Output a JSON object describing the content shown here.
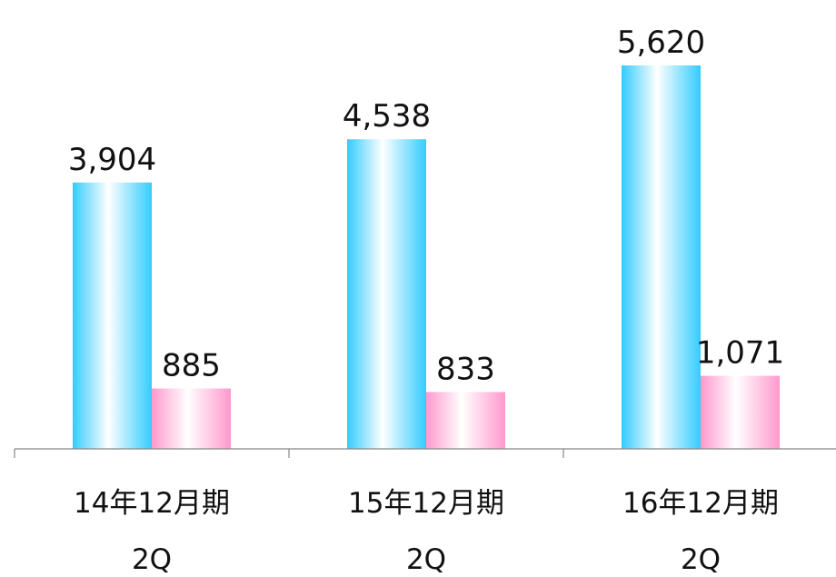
{
  "chart_data": {
    "type": "bar",
    "categories": [
      [
        "14年12月期",
        "2Q"
      ],
      [
        "15年12月期",
        "2Q"
      ],
      [
        "16年12月期",
        "2Q"
      ]
    ],
    "series": [
      {
        "values": [
          3904,
          4538,
          5620
        ],
        "labels": [
          "3,904",
          "4,538",
          "5,620"
        ],
        "color": "#33ccff"
      },
      {
        "values": [
          885,
          833,
          1071
        ],
        "labels": [
          "885",
          "833",
          "1,071"
        ],
        "color": "#ff99cc"
      }
    ],
    "ylim": [
      0,
      5620
    ],
    "grid": false,
    "legend": "none"
  }
}
